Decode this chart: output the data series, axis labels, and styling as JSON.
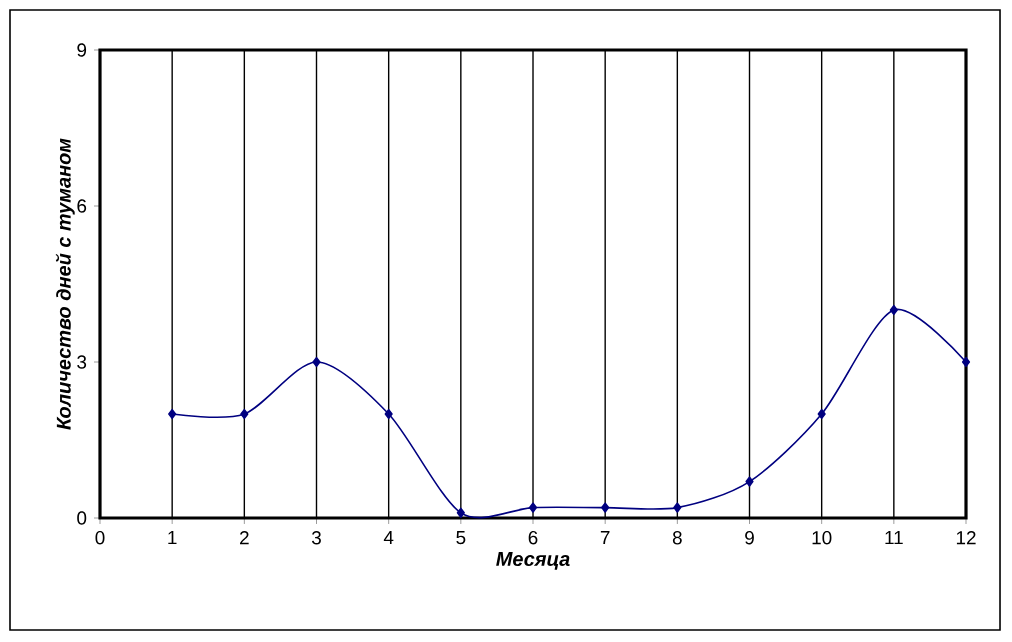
{
  "chart_data": {
    "type": "line",
    "xlabel": "Месяца",
    "ylabel": "Количество дней с туманом",
    "x": [
      1,
      2,
      3,
      4,
      5,
      6,
      7,
      8,
      9,
      10,
      11,
      12
    ],
    "values": [
      2,
      2,
      3,
      2,
      0.1,
      0.2,
      0.2,
      0.2,
      0.7,
      2,
      4,
      3
    ],
    "color": "#000080",
    "marker": "diamond",
    "line_style": "solid",
    "grid": "x",
    "xlim": [
      0,
      12
    ],
    "xticks": [
      0,
      1,
      2,
      3,
      4,
      5,
      6,
      7,
      8,
      9,
      10,
      11,
      12
    ],
    "ylim": [
      0,
      9
    ],
    "yticks": [
      0,
      3,
      6,
      9
    ]
  }
}
